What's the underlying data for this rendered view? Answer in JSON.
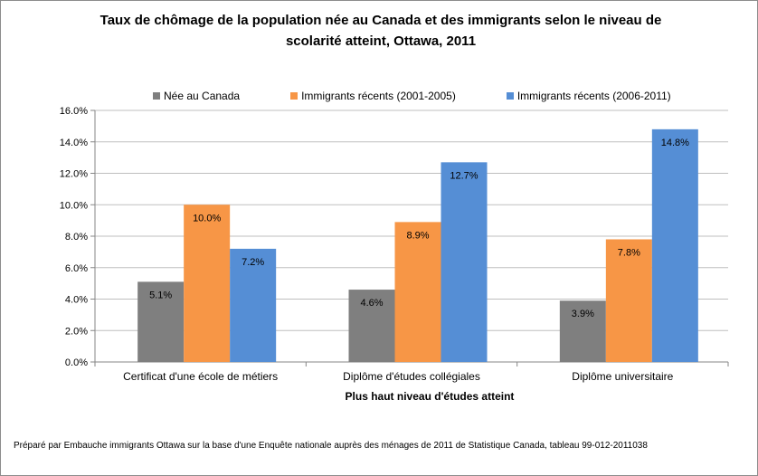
{
  "chart_data": {
    "type": "bar",
    "title": "Taux de chômage de la population née au Canada et des immigrants selon le niveau de scolarité atteint, Ottawa, 2011",
    "categories": [
      "Certificat d'une école de métiers",
      "Diplôme d'études collégiales",
      "Diplôme universitaire"
    ],
    "series": [
      {
        "name": "Née au Canada",
        "color": "#7f7f7f",
        "values": [
          5.1,
          4.6,
          3.9
        ],
        "labels": [
          "5.1%",
          "4.6%",
          "3.9%"
        ]
      },
      {
        "name": "Immigrants  récents (2001-2005)",
        "color": "#f79646",
        "values": [
          10.0,
          8.9,
          7.8
        ],
        "labels": [
          "10.0%",
          "8.9%",
          "7.8%"
        ]
      },
      {
        "name": "Immigrants  récents (2006-2011)",
        "color": "#558ed5",
        "values": [
          7.2,
          12.7,
          14.8
        ],
        "labels": [
          "7.2%",
          "12.7%",
          "14.8%"
        ]
      }
    ],
    "xlabel": "Plus haut niveau  d'études atteint",
    "ylabel": "",
    "ylim": [
      0,
      16
    ],
    "yticks": [
      "0.0%",
      "2.0%",
      "4.0%",
      "6.0%",
      "8.0%",
      "10.0%",
      "12.0%",
      "14.0%",
      "16.0%"
    ],
    "grid": true,
    "legend": "top"
  },
  "source_note": "Préparé par Embauche immigrants Ottawa sur la base d'une Enquête nationale auprès des ménages de 2011 de Statistique Canada, tableau 99-012-2011038"
}
